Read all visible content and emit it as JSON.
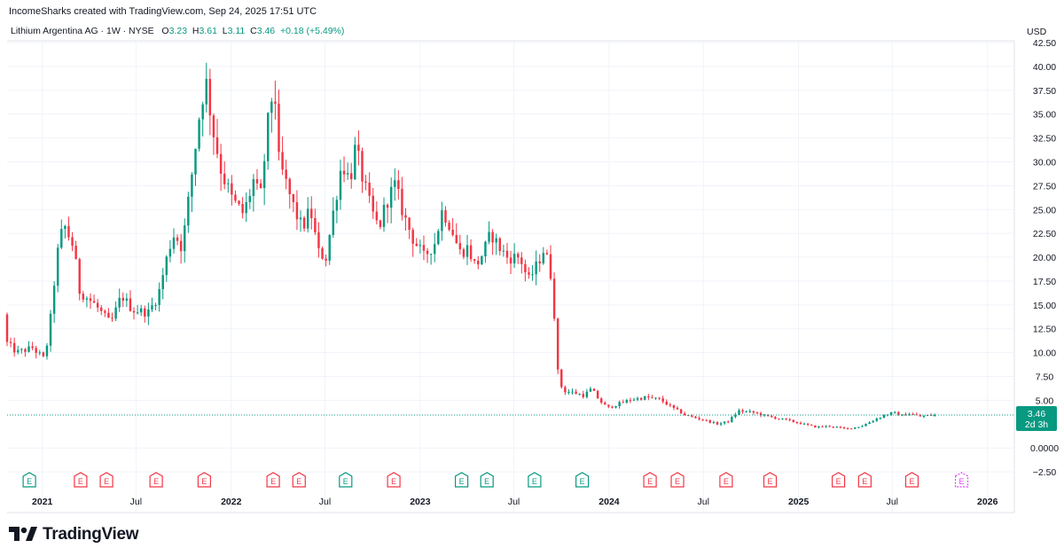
{
  "header": {
    "credit": "IncomeSharks created with TradingView.com, Sep 24, 2025 17:51 UTC",
    "symbol": "Lithium Argentina AG · 1W · NYSE",
    "o_key": "O",
    "o_val": "3.23",
    "h_key": "H",
    "h_val": "3.61",
    "l_key": "L",
    "l_val": "3.11",
    "c_key": "C",
    "c_val": "3.46",
    "change": "+0.18 (+5.49%)",
    "currency": "USD"
  },
  "price_tag": {
    "value": "3.46",
    "countdown": "2d 3h"
  },
  "logo": {
    "text": "TradingView"
  },
  "colors": {
    "up": "#089981",
    "down": "#f23645",
    "grid": "#f0f3fa",
    "text": "#131722",
    "future_event": "#e040fb"
  },
  "chart_data": {
    "type": "candlestick",
    "title": "Lithium Argentina AG · 1W · NYSE",
    "ylabel": "USD",
    "ylim": [
      -3.7,
      42.5
    ],
    "y_ticks": [
      "42.50",
      "40.00",
      "37.50",
      "35.00",
      "32.50",
      "30.00",
      "27.50",
      "25.00",
      "22.50",
      "20.00",
      "17.50",
      "15.00",
      "12.50",
      "10.00",
      "7.50",
      "5.00",
      "0.0000",
      "−2.50"
    ],
    "x_ticks": [
      {
        "label": "2021",
        "date": "2021-01-01",
        "bold": true
      },
      {
        "label": "Jul",
        "date": "2021-07-01",
        "bold": false
      },
      {
        "label": "2022",
        "date": "2022-01-01",
        "bold": true
      },
      {
        "label": "Jul",
        "date": "2022-07-01",
        "bold": false
      },
      {
        "label": "2023",
        "date": "2023-01-01",
        "bold": true
      },
      {
        "label": "Jul",
        "date": "2023-07-01",
        "bold": false
      },
      {
        "label": "2024",
        "date": "2024-01-01",
        "bold": true
      },
      {
        "label": "Jul",
        "date": "2024-07-01",
        "bold": false
      },
      {
        "label": "2025",
        "date": "2025-01-01",
        "bold": true
      },
      {
        "label": "Jul",
        "date": "2025-07-01",
        "bold": false
      },
      {
        "label": "2026",
        "date": "2026-01-01",
        "bold": true
      }
    ],
    "x_range": [
      "2020-10-25",
      "2026-02-15"
    ],
    "last_price": 3.46,
    "grid": true,
    "earnings_events": [
      {
        "date": "2020-12-07",
        "type": "positive",
        "label": "E"
      },
      {
        "date": "2021-03-16",
        "type": "negative",
        "label": "E"
      },
      {
        "date": "2021-05-05",
        "type": "negative",
        "label": "E"
      },
      {
        "date": "2021-08-09",
        "type": "negative",
        "label": "E"
      },
      {
        "date": "2021-11-10",
        "type": "negative",
        "label": "E"
      },
      {
        "date": "2022-03-23",
        "type": "negative",
        "label": "E"
      },
      {
        "date": "2022-05-12",
        "type": "negative",
        "label": "E"
      },
      {
        "date": "2022-08-10",
        "type": "positive",
        "label": "E"
      },
      {
        "date": "2022-11-11",
        "type": "negative",
        "label": "E"
      },
      {
        "date": "2023-03-22",
        "type": "positive",
        "label": "E"
      },
      {
        "date": "2023-05-10",
        "type": "positive",
        "label": "E"
      },
      {
        "date": "2023-08-10",
        "type": "positive",
        "label": "E"
      },
      {
        "date": "2023-11-10",
        "type": "positive",
        "label": "E"
      },
      {
        "date": "2024-03-20",
        "type": "negative",
        "label": "E"
      },
      {
        "date": "2024-05-12",
        "type": "negative",
        "label": "E"
      },
      {
        "date": "2024-08-14",
        "type": "negative",
        "label": "E"
      },
      {
        "date": "2024-11-07",
        "type": "negative",
        "label": "E"
      },
      {
        "date": "2025-03-19",
        "type": "negative",
        "label": "E"
      },
      {
        "date": "2025-05-09",
        "type": "negative",
        "label": "E"
      },
      {
        "date": "2025-08-08",
        "type": "negative",
        "label": "E"
      },
      {
        "date": "2025-11-12",
        "type": "upcoming",
        "label": "E"
      }
    ],
    "price_path": [
      [
        "2020-10-25",
        14.0
      ],
      [
        "2020-11-01",
        11.0
      ],
      [
        "2020-11-20",
        10.0
      ],
      [
        "2020-12-20",
        10.5
      ],
      [
        "2021-01-10",
        9.4
      ],
      [
        "2021-01-20",
        11.5
      ],
      [
        "2021-02-05",
        20.0
      ],
      [
        "2021-02-18",
        23.5
      ],
      [
        "2021-03-10",
        21.0
      ],
      [
        "2021-03-20",
        16.5
      ],
      [
        "2021-04-20",
        15.0
      ],
      [
        "2021-05-20",
        13.0
      ],
      [
        "2021-06-10",
        16.0
      ],
      [
        "2021-07-01",
        14.5
      ],
      [
        "2021-08-01",
        14.2
      ],
      [
        "2021-08-20",
        16.0
      ],
      [
        "2021-09-10",
        21.0
      ],
      [
        "2021-09-20",
        22.5
      ],
      [
        "2021-10-05",
        21.0
      ],
      [
        "2021-10-20",
        27.0
      ],
      [
        "2021-11-10",
        36.0
      ],
      [
        "2021-11-20",
        38.5
      ],
      [
        "2021-12-05",
        33.0
      ],
      [
        "2021-12-20",
        29.0
      ],
      [
        "2022-01-10",
        26.0
      ],
      [
        "2022-02-01",
        24.5
      ],
      [
        "2022-02-20",
        28.0
      ],
      [
        "2022-03-05",
        26.0
      ],
      [
        "2022-03-20",
        34.0
      ],
      [
        "2022-04-01",
        38.5
      ],
      [
        "2022-04-10",
        30.0
      ],
      [
        "2022-04-25",
        27.5
      ],
      [
        "2022-05-10",
        25.0
      ],
      [
        "2022-05-25",
        23.0
      ],
      [
        "2022-06-10",
        25.0
      ],
      [
        "2022-06-25",
        20.5
      ],
      [
        "2022-07-10",
        20.0
      ],
      [
        "2022-07-25",
        25.0
      ],
      [
        "2022-08-10",
        30.0
      ],
      [
        "2022-08-25",
        28.0
      ],
      [
        "2022-09-05",
        31.5
      ],
      [
        "2022-09-20",
        28.0
      ],
      [
        "2022-10-05",
        25.0
      ],
      [
        "2022-10-20",
        23.0
      ],
      [
        "2022-11-05",
        26.0
      ],
      [
        "2022-11-20",
        27.5
      ],
      [
        "2022-12-10",
        24.0
      ],
      [
        "2022-12-25",
        22.0
      ],
      [
        "2023-01-15",
        20.0
      ],
      [
        "2023-02-05",
        21.5
      ],
      [
        "2023-02-20",
        25.0
      ],
      [
        "2023-03-10",
        23.0
      ],
      [
        "2023-03-25",
        20.5
      ],
      [
        "2023-04-10",
        21.0
      ],
      [
        "2023-04-25",
        19.0
      ],
      [
        "2023-05-10",
        20.5
      ],
      [
        "2023-05-25",
        22.5
      ],
      [
        "2023-06-10",
        21.0
      ],
      [
        "2023-06-25",
        20.0
      ],
      [
        "2023-07-20",
        20.0
      ],
      [
        "2023-08-05",
        17.5
      ],
      [
        "2023-08-20",
        19.0
      ],
      [
        "2023-09-05",
        21.0
      ],
      [
        "2023-09-20",
        17.5
      ],
      [
        "2023-10-01",
        8.0
      ],
      [
        "2023-10-10",
        6.0
      ],
      [
        "2023-11-01",
        5.8
      ],
      [
        "2023-11-20",
        5.5
      ],
      [
        "2023-12-05",
        6.2
      ],
      [
        "2023-12-20",
        5.0
      ],
      [
        "2024-01-05",
        4.2
      ],
      [
        "2024-01-25",
        4.6
      ],
      [
        "2024-02-20",
        5.1
      ],
      [
        "2024-03-20",
        5.3
      ],
      [
        "2024-04-15",
        5.1
      ],
      [
        "2024-05-10",
        4.2
      ],
      [
        "2024-06-05",
        3.4
      ],
      [
        "2024-07-05",
        3.0
      ],
      [
        "2024-08-05",
        2.5
      ],
      [
        "2024-08-25",
        2.8
      ],
      [
        "2024-09-15",
        3.9
      ],
      [
        "2024-10-15",
        3.7
      ],
      [
        "2024-11-10",
        3.3
      ],
      [
        "2024-12-10",
        3.0
      ],
      [
        "2025-01-10",
        2.6
      ],
      [
        "2025-02-10",
        2.2
      ],
      [
        "2025-03-10",
        2.3
      ],
      [
        "2025-04-10",
        2.0
      ],
      [
        "2025-05-10",
        2.3
      ],
      [
        "2025-06-05",
        3.0
      ],
      [
        "2025-06-25",
        3.5
      ],
      [
        "2025-07-10",
        3.7
      ],
      [
        "2025-07-25",
        3.4
      ],
      [
        "2025-08-10",
        3.6
      ],
      [
        "2025-09-01",
        3.3
      ],
      [
        "2025-09-22",
        3.46
      ]
    ]
  }
}
